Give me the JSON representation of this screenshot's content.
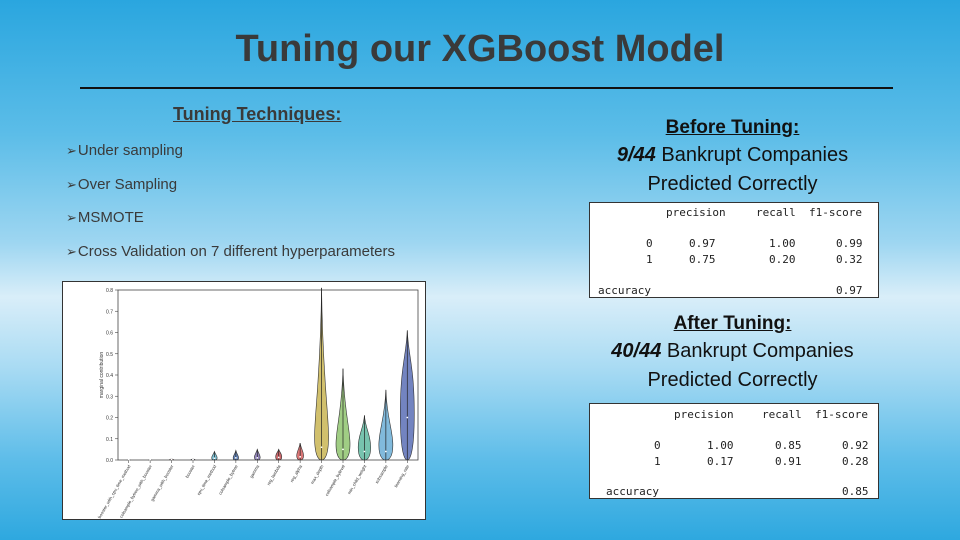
{
  "title": "Tuning our XGBoost Model",
  "techniques": {
    "heading": "Tuning Techniques:",
    "items": [
      "Under sampling",
      "Over Sampling",
      "MSMOTE",
      "Cross Validation on 7 different hyperparameters"
    ]
  },
  "before": {
    "heading": "Before Tuning:",
    "fraction": "9/44",
    "line1_rest": " Bankrupt Companies",
    "line2": "Predicted Correctly",
    "report": {
      "headers": [
        "precision",
        "recall",
        "f1-score"
      ],
      "rows": [
        {
          "label": "0",
          "values": [
            "0.97",
            "1.00",
            "0.99"
          ]
        },
        {
          "label": "1",
          "values": [
            "0.75",
            "0.20",
            "0.32"
          ]
        }
      ],
      "accuracy_label": "accuracy",
      "accuracy": "0.97"
    }
  },
  "after": {
    "heading": "After Tuning:",
    "fraction": "40/44",
    "line1_rest": " Bankrupt Companies",
    "line2": "Predicted Correctly",
    "report": {
      "headers": [
        "precision",
        "recall",
        "f1-score"
      ],
      "rows": [
        {
          "label": "0",
          "values": [
            "1.00",
            "0.85",
            "0.92"
          ]
        },
        {
          "label": "1",
          "values": [
            "0.17",
            "0.91",
            "0.28"
          ]
        }
      ],
      "accuracy_label": "accuracy",
      "accuracy": "0.85"
    }
  },
  "chart_data": {
    "type": "violin",
    "ylabel": "marginal contribution",
    "ylim": [
      0,
      0.8
    ],
    "yticks": [
      "0.0",
      "0.1",
      "0.2",
      "0.3",
      "0.4",
      "0.5",
      "0.6",
      "0.7",
      "0.8"
    ],
    "categories": [
      "booster_with_cpu_time_method",
      "colsample_bytree_with_booster",
      "gamma_with_booster",
      "booster",
      "cpu_time_method",
      "colsample_bytree",
      "gamma",
      "reg_lambda",
      "reg_alpha",
      "max_depth",
      "colsample_bylevel",
      "min_child_weight",
      "subsample",
      "learning_rate"
    ],
    "series": [
      {
        "max": [
          0.0,
          0.0,
          0.005,
          0.005,
          0.04,
          0.045,
          0.05,
          0.05,
          0.08,
          0.81,
          0.43,
          0.21,
          0.33,
          0.61
        ],
        "bulk": [
          0.0,
          0.0,
          0.003,
          0.003,
          0.02,
          0.02,
          0.025,
          0.03,
          0.04,
          0.22,
          0.15,
          0.12,
          0.14,
          0.44
        ],
        "median": [
          0.0,
          0.0,
          0.002,
          0.002,
          0.008,
          0.01,
          0.01,
          0.012,
          0.015,
          0.06,
          0.05,
          0.04,
          0.04,
          0.2
        ],
        "colors": [
          "#4c72b0",
          "#55a868",
          "#c44e52",
          "#8172b2",
          "#64b5cd",
          "#4c72b0",
          "#8172b2",
          "#c44e52",
          "#d65f5f",
          "#c9b553",
          "#8fc46f",
          "#5fb8a0",
          "#6baed6",
          "#5a6fb5"
        ]
      }
    ]
  }
}
